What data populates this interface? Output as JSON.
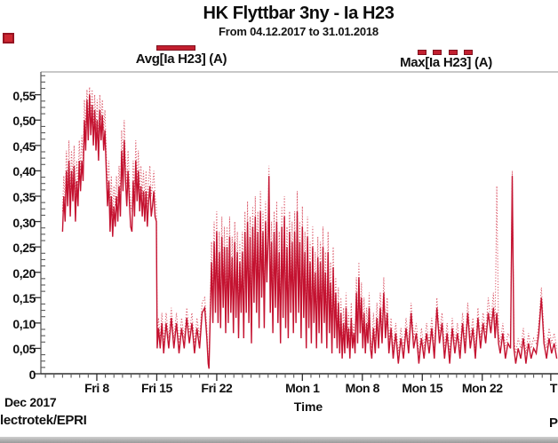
{
  "header": {
    "title": "HK Flyttbar 3ny - Ia H23",
    "subtitle": "From 04.12.2017 to 31.01.2018"
  },
  "legend": [
    {
      "label": "Avg[Ia H23] (A)",
      "style": "solid",
      "color": "#c21f2f"
    },
    {
      "label": "Max[Ia H23] (A)",
      "style": "dashed",
      "color": "#c21f2f"
    }
  ],
  "footer": {
    "month_label": "Dec 2017",
    "watermark": "lectrotek/EPRI",
    "partial_right_text": "P"
  },
  "artifacts": {
    "red_mark": "red-square-scan-mark",
    "colors": {
      "avg_line": "#c41230",
      "max_line": "#da5566",
      "axis": "#3a3a3a",
      "frame": "#a8a8a8"
    }
  },
  "chart_data": {
    "type": "line",
    "title": "HK Flyttbar 3ny - Ia H23",
    "subtitle": "From 04.12.2017 to 31.01.2018",
    "xlabel": "Time",
    "ylabel": "",
    "x_unit_days_since": "04.12.2017",
    "ylim": [
      0,
      0.5775
    ],
    "grid": false,
    "legend_position": "top",
    "y_ticks": [
      {
        "label": "0,55",
        "value": 0.55
      },
      {
        "label": "0,50",
        "value": 0.5
      },
      {
        "label": "0,45",
        "value": 0.45
      },
      {
        "label": "0,40",
        "value": 0.4
      },
      {
        "label": "0,35",
        "value": 0.35
      },
      {
        "label": "0,30",
        "value": 0.3
      },
      {
        "label": "0,25",
        "value": 0.25
      },
      {
        "label": "0,20",
        "value": 0.2
      },
      {
        "label": "0,15",
        "value": 0.15
      },
      {
        "label": "0,10",
        "value": 0.1
      },
      {
        "label": "0,05",
        "value": 0.05
      },
      {
        "label": "0",
        "value": 0.0
      }
    ],
    "x_ticks": [
      {
        "label": "Fri 8",
        "day": 4
      },
      {
        "label": "Fri 15",
        "day": 11
      },
      {
        "label": "Fri 22",
        "day": 18
      },
      {
        "label": "Mon 1",
        "day": 28
      },
      {
        "label": "Mon 8",
        "day": 35
      },
      {
        "label": "Mon 15",
        "day": 42
      },
      {
        "label": "Mon 22",
        "day": 49
      },
      {
        "label": "T",
        "day": 57,
        "partial": true
      }
    ],
    "series": [
      {
        "name": "Avg[Ia H23] (A)",
        "style": "solid"
      },
      {
        "name": "Max[Ia H23] (A)",
        "style": "dotted"
      }
    ],
    "points": [
      [
        0,
        0.28,
        0.32
      ],
      [
        0.15,
        0.35,
        0.39
      ],
      [
        0.3,
        0.3,
        0.34
      ],
      [
        0.45,
        0.4,
        0.44
      ],
      [
        0.6,
        0.33,
        0.37
      ],
      [
        0.75,
        0.42,
        0.46
      ],
      [
        0.9,
        0.31,
        0.35
      ],
      [
        1.05,
        0.4,
        0.44
      ],
      [
        1.2,
        0.34,
        0.38
      ],
      [
        1.35,
        0.41,
        0.45
      ],
      [
        1.5,
        0.3,
        0.34
      ],
      [
        1.65,
        0.38,
        0.42
      ],
      [
        1.8,
        0.33,
        0.37
      ],
      [
        1.95,
        0.42,
        0.46
      ],
      [
        2.1,
        0.36,
        0.4
      ],
      [
        2.25,
        0.42,
        0.47
      ],
      [
        2.4,
        0.38,
        0.42
      ],
      [
        2.55,
        0.5,
        0.54
      ],
      [
        2.7,
        0.44,
        0.48
      ],
      [
        2.85,
        0.54,
        0.56
      ],
      [
        3.0,
        0.46,
        0.5
      ],
      [
        3.15,
        0.55,
        0.565
      ],
      [
        3.3,
        0.47,
        0.51
      ],
      [
        3.45,
        0.53,
        0.56
      ],
      [
        3.6,
        0.45,
        0.49
      ],
      [
        3.75,
        0.52,
        0.55
      ],
      [
        3.9,
        0.44,
        0.48
      ],
      [
        4.05,
        0.5,
        0.54
      ],
      [
        4.2,
        0.42,
        0.46
      ],
      [
        4.35,
        0.52,
        0.55
      ],
      [
        4.5,
        0.46,
        0.5
      ],
      [
        4.65,
        0.51,
        0.54
      ],
      [
        4.8,
        0.44,
        0.48
      ],
      [
        4.95,
        0.48,
        0.52
      ],
      [
        5.1,
        0.4,
        0.44
      ],
      [
        5.25,
        0.33,
        0.37
      ],
      [
        5.4,
        0.38,
        0.42
      ],
      [
        5.55,
        0.28,
        0.32
      ],
      [
        5.7,
        0.35,
        0.39
      ],
      [
        5.85,
        0.27,
        0.31
      ],
      [
        6.0,
        0.33,
        0.37
      ],
      [
        6.15,
        0.29,
        0.33
      ],
      [
        6.3,
        0.35,
        0.39
      ],
      [
        6.45,
        0.3,
        0.34
      ],
      [
        6.6,
        0.37,
        0.41
      ],
      [
        6.75,
        0.31,
        0.35
      ],
      [
        6.9,
        0.44,
        0.48
      ],
      [
        7.05,
        0.36,
        0.4
      ],
      [
        7.2,
        0.46,
        0.5
      ],
      [
        7.35,
        0.38,
        0.42
      ],
      [
        7.5,
        0.33,
        0.37
      ],
      [
        7.65,
        0.4,
        0.44
      ],
      [
        7.8,
        0.34,
        0.38
      ],
      [
        7.95,
        0.29,
        0.33
      ],
      [
        8.1,
        0.28,
        0.32
      ],
      [
        8.25,
        0.38,
        0.42
      ],
      [
        8.4,
        0.31,
        0.35
      ],
      [
        8.55,
        0.42,
        0.46
      ],
      [
        8.7,
        0.34,
        0.38
      ],
      [
        8.85,
        0.4,
        0.44
      ],
      [
        9.0,
        0.32,
        0.36
      ],
      [
        9.15,
        0.37,
        0.41
      ],
      [
        9.3,
        0.31,
        0.35
      ],
      [
        9.45,
        0.36,
        0.4
      ],
      [
        9.6,
        0.3,
        0.34
      ],
      [
        9.75,
        0.36,
        0.4
      ],
      [
        9.9,
        0.29,
        0.33
      ],
      [
        10.05,
        0.34,
        0.38
      ],
      [
        10.2,
        0.37,
        0.41
      ],
      [
        10.35,
        0.31,
        0.35
      ],
      [
        10.5,
        0.33,
        0.37
      ],
      [
        10.65,
        0.36,
        0.4
      ],
      [
        10.8,
        0.31,
        0.35
      ],
      [
        10.95,
        0.3,
        0.33
      ],
      [
        11.05,
        0.05,
        0.08
      ],
      [
        11.2,
        0.09,
        0.11
      ],
      [
        11.4,
        0.05,
        0.07
      ],
      [
        11.6,
        0.1,
        0.12
      ],
      [
        11.8,
        0.04,
        0.06
      ],
      [
        12.1,
        0.1,
        0.12
      ],
      [
        12.4,
        0.05,
        0.07
      ],
      [
        12.7,
        0.11,
        0.13
      ],
      [
        13.0,
        0.05,
        0.07
      ],
      [
        13.3,
        0.1,
        0.12
      ],
      [
        13.6,
        0.04,
        0.06
      ],
      [
        13.9,
        0.09,
        0.11
      ],
      [
        14.2,
        0.05,
        0.07
      ],
      [
        14.5,
        0.11,
        0.13
      ],
      [
        14.8,
        0.06,
        0.08
      ],
      [
        15.1,
        0.1,
        0.12
      ],
      [
        15.4,
        0.04,
        0.06
      ],
      [
        15.7,
        0.09,
        0.11
      ],
      [
        16.0,
        0.05,
        0.07
      ],
      [
        16.3,
        0.12,
        0.14
      ],
      [
        16.6,
        0.13,
        0.15
      ],
      [
        16.85,
        0.07,
        0.09
      ],
      [
        17.0,
        0.02,
        0.03
      ],
      [
        17.1,
        0.01,
        0.02
      ],
      [
        17.25,
        0.12,
        0.15
      ],
      [
        17.4,
        0.22,
        0.26
      ],
      [
        17.55,
        0.1,
        0.13
      ],
      [
        17.7,
        0.26,
        0.3
      ],
      [
        17.85,
        0.12,
        0.15
      ],
      [
        18.0,
        0.28,
        0.32
      ],
      [
        18.15,
        0.1,
        0.13
      ],
      [
        18.3,
        0.24,
        0.28
      ],
      [
        18.45,
        0.09,
        0.12
      ],
      [
        18.6,
        0.27,
        0.31
      ],
      [
        18.75,
        0.13,
        0.16
      ],
      [
        18.9,
        0.25,
        0.29
      ],
      [
        19.05,
        0.08,
        0.11
      ],
      [
        19.2,
        0.25,
        0.29
      ],
      [
        19.35,
        0.1,
        0.13
      ],
      [
        19.5,
        0.27,
        0.31
      ],
      [
        19.65,
        0.12,
        0.15
      ],
      [
        19.8,
        0.23,
        0.27
      ],
      [
        19.95,
        0.08,
        0.11
      ],
      [
        20.1,
        0.26,
        0.3
      ],
      [
        20.25,
        0.11,
        0.14
      ],
      [
        20.4,
        0.24,
        0.28
      ],
      [
        20.55,
        0.07,
        0.1
      ],
      [
        20.7,
        0.22,
        0.26
      ],
      [
        20.85,
        0.12,
        0.15
      ],
      [
        21.0,
        0.24,
        0.28
      ],
      [
        21.15,
        0.07,
        0.1
      ],
      [
        21.3,
        0.28,
        0.32
      ],
      [
        21.45,
        0.12,
        0.15
      ],
      [
        21.6,
        0.3,
        0.34
      ],
      [
        21.75,
        0.1,
        0.13
      ],
      [
        21.9,
        0.27,
        0.31
      ],
      [
        22.05,
        0.06,
        0.09
      ],
      [
        22.2,
        0.29,
        0.33
      ],
      [
        22.35,
        0.14,
        0.17
      ],
      [
        22.5,
        0.31,
        0.35
      ],
      [
        22.65,
        0.12,
        0.15
      ],
      [
        22.8,
        0.28,
        0.32
      ],
      [
        22.95,
        0.09,
        0.12
      ],
      [
        23.1,
        0.32,
        0.36
      ],
      [
        23.25,
        0.15,
        0.18
      ],
      [
        23.4,
        0.28,
        0.32
      ],
      [
        23.55,
        0.09,
        0.12
      ],
      [
        23.7,
        0.3,
        0.34
      ],
      [
        23.85,
        0.18,
        0.21
      ],
      [
        24.0,
        0.27,
        0.31
      ],
      [
        24.1,
        0.39,
        0.41
      ],
      [
        24.25,
        0.12,
        0.15
      ],
      [
        24.4,
        0.26,
        0.3
      ],
      [
        24.55,
        0.08,
        0.11
      ],
      [
        24.7,
        0.28,
        0.32
      ],
      [
        24.85,
        0.13,
        0.16
      ],
      [
        25.0,
        0.3,
        0.34
      ],
      [
        25.15,
        0.1,
        0.13
      ],
      [
        25.3,
        0.24,
        0.28
      ],
      [
        25.45,
        0.06,
        0.09
      ],
      [
        25.6,
        0.29,
        0.33
      ],
      [
        25.75,
        0.11,
        0.14
      ],
      [
        25.9,
        0.31,
        0.35
      ],
      [
        26.05,
        0.09,
        0.12
      ],
      [
        26.2,
        0.25,
        0.29
      ],
      [
        26.35,
        0.07,
        0.1
      ],
      [
        26.5,
        0.28,
        0.32
      ],
      [
        26.65,
        0.12,
        0.15
      ],
      [
        26.8,
        0.26,
        0.3
      ],
      [
        26.95,
        0.08,
        0.11
      ],
      [
        27.1,
        0.28,
        0.32
      ],
      [
        27.25,
        0.1,
        0.13
      ],
      [
        27.4,
        0.32,
        0.36
      ],
      [
        27.55,
        0.12,
        0.15
      ],
      [
        27.7,
        0.26,
        0.3
      ],
      [
        27.85,
        0.07,
        0.1
      ],
      [
        28.0,
        0.29,
        0.33
      ],
      [
        28.15,
        0.11,
        0.14
      ],
      [
        28.3,
        0.24,
        0.28
      ],
      [
        28.45,
        0.05,
        0.08
      ],
      [
        28.6,
        0.27,
        0.31
      ],
      [
        28.75,
        0.09,
        0.12
      ],
      [
        28.9,
        0.22,
        0.26
      ],
      [
        29.05,
        0.06,
        0.09
      ],
      [
        29.2,
        0.25,
        0.29
      ],
      [
        29.35,
        0.1,
        0.13
      ],
      [
        29.5,
        0.2,
        0.24
      ],
      [
        29.65,
        0.05,
        0.08
      ],
      [
        29.8,
        0.23,
        0.27
      ],
      [
        29.95,
        0.08,
        0.11
      ],
      [
        30.1,
        0.22,
        0.26
      ],
      [
        30.25,
        0.06,
        0.09
      ],
      [
        30.4,
        0.25,
        0.29
      ],
      [
        30.55,
        0.1,
        0.13
      ],
      [
        30.7,
        0.2,
        0.24
      ],
      [
        30.85,
        0.05,
        0.08
      ],
      [
        31.0,
        0.24,
        0.28
      ],
      [
        31.15,
        0.08,
        0.11
      ],
      [
        31.3,
        0.18,
        0.22
      ],
      [
        31.45,
        0.04,
        0.07
      ],
      [
        31.6,
        0.21,
        0.25
      ],
      [
        31.75,
        0.07,
        0.1
      ],
      [
        31.9,
        0.16,
        0.19
      ],
      [
        32.05,
        0.05,
        0.07
      ],
      [
        32.2,
        0.14,
        0.17
      ],
      [
        32.35,
        0.04,
        0.06
      ],
      [
        32.5,
        0.12,
        0.15
      ],
      [
        32.65,
        0.03,
        0.05
      ],
      [
        32.8,
        0.1,
        0.13
      ],
      [
        32.95,
        0.04,
        0.06
      ],
      [
        33.1,
        0.13,
        0.16
      ],
      [
        33.25,
        0.05,
        0.07
      ],
      [
        33.4,
        0.09,
        0.12
      ],
      [
        33.55,
        0.03,
        0.05
      ],
      [
        33.7,
        0.11,
        0.14
      ],
      [
        33.85,
        0.05,
        0.07
      ],
      [
        34.0,
        0.08,
        0.1
      ],
      [
        34.15,
        0.04,
        0.06
      ],
      [
        34.3,
        0.16,
        0.19
      ],
      [
        34.45,
        0.06,
        0.08
      ],
      [
        34.6,
        0.19,
        0.22
      ],
      [
        34.75,
        0.08,
        0.1
      ],
      [
        34.9,
        0.15,
        0.18
      ],
      [
        35.05,
        0.05,
        0.07
      ],
      [
        35.2,
        0.12,
        0.15
      ],
      [
        35.35,
        0.04,
        0.06
      ],
      [
        35.5,
        0.1,
        0.13
      ],
      [
        35.65,
        0.06,
        0.08
      ],
      [
        35.8,
        0.13,
        0.16
      ],
      [
        35.95,
        0.05,
        0.07
      ],
      [
        36.1,
        0.03,
        0.05
      ],
      [
        36.3,
        0.09,
        0.12
      ],
      [
        36.5,
        0.04,
        0.06
      ],
      [
        36.7,
        0.11,
        0.14
      ],
      [
        36.9,
        0.05,
        0.07
      ],
      [
        37.1,
        0.13,
        0.16
      ],
      [
        37.3,
        0.06,
        0.08
      ],
      [
        37.5,
        0.16,
        0.19
      ],
      [
        37.7,
        0.07,
        0.09
      ],
      [
        37.9,
        0.12,
        0.15
      ],
      [
        38.1,
        0.04,
        0.06
      ],
      [
        38.35,
        0.09,
        0.11
      ],
      [
        38.6,
        0.03,
        0.05
      ],
      [
        38.9,
        0.08,
        0.1
      ],
      [
        39.2,
        0.02,
        0.04
      ],
      [
        39.5,
        0.07,
        0.09
      ],
      [
        39.8,
        0.03,
        0.05
      ],
      [
        40.1,
        0.09,
        0.11
      ],
      [
        40.4,
        0.04,
        0.06
      ],
      [
        40.7,
        0.12,
        0.14
      ],
      [
        41.0,
        0.05,
        0.07
      ],
      [
        41.3,
        0.08,
        0.1
      ],
      [
        41.6,
        0.02,
        0.04
      ],
      [
        41.9,
        0.07,
        0.09
      ],
      [
        42.2,
        0.03,
        0.05
      ],
      [
        42.5,
        0.08,
        0.1
      ],
      [
        42.8,
        0.04,
        0.06
      ],
      [
        43.1,
        0.09,
        0.11
      ],
      [
        43.4,
        0.03,
        0.05
      ],
      [
        43.7,
        0.13,
        0.15
      ],
      [
        44.0,
        0.06,
        0.08
      ],
      [
        44.3,
        0.1,
        0.12
      ],
      [
        44.6,
        0.03,
        0.05
      ],
      [
        44.9,
        0.08,
        0.1
      ],
      [
        45.2,
        0.02,
        0.04
      ],
      [
        45.5,
        0.09,
        0.11
      ],
      [
        45.8,
        0.04,
        0.06
      ],
      [
        46.1,
        0.08,
        0.1
      ],
      [
        46.4,
        0.03,
        0.05
      ],
      [
        46.7,
        0.1,
        0.12
      ],
      [
        47.0,
        0.04,
        0.06
      ],
      [
        47.3,
        0.12,
        0.14
      ],
      [
        47.6,
        0.05,
        0.07
      ],
      [
        47.9,
        0.09,
        0.11
      ],
      [
        48.2,
        0.03,
        0.05
      ],
      [
        48.5,
        0.11,
        0.13
      ],
      [
        48.8,
        0.05,
        0.07
      ],
      [
        49.1,
        0.1,
        0.12
      ],
      [
        49.4,
        0.06,
        0.08
      ],
      [
        49.7,
        0.12,
        0.15
      ],
      [
        50.0,
        0.08,
        0.1
      ],
      [
        50.3,
        0.13,
        0.16
      ],
      [
        50.5,
        0.07,
        0.09
      ],
      [
        50.7,
        0.12,
        0.37
      ],
      [
        50.9,
        0.06,
        0.08
      ],
      [
        51.1,
        0.04,
        0.06
      ],
      [
        51.4,
        0.08,
        0.1
      ],
      [
        51.7,
        0.03,
        0.05
      ],
      [
        52.0,
        0.06,
        0.08
      ],
      [
        52.3,
        0.05,
        0.07
      ],
      [
        52.5,
        0.39,
        0.4
      ],
      [
        52.7,
        0.05,
        0.07
      ],
      [
        52.9,
        0.02,
        0.04
      ],
      [
        53.2,
        0.05,
        0.07
      ],
      [
        53.5,
        0.03,
        0.05
      ],
      [
        53.8,
        0.07,
        0.09
      ],
      [
        54.1,
        0.02,
        0.04
      ],
      [
        54.4,
        0.06,
        0.08
      ],
      [
        54.7,
        0.03,
        0.05
      ],
      [
        55.0,
        0.05,
        0.07
      ],
      [
        55.3,
        0.04,
        0.06
      ],
      [
        55.6,
        0.08,
        0.1
      ],
      [
        55.9,
        0.15,
        0.17
      ],
      [
        56.2,
        0.06,
        0.08
      ],
      [
        56.5,
        0.03,
        0.05
      ],
      [
        56.8,
        0.07,
        0.09
      ],
      [
        57.1,
        0.04,
        0.06
      ],
      [
        57.4,
        0.06,
        0.08
      ],
      [
        57.7,
        0.03,
        0.05
      ]
    ]
  }
}
